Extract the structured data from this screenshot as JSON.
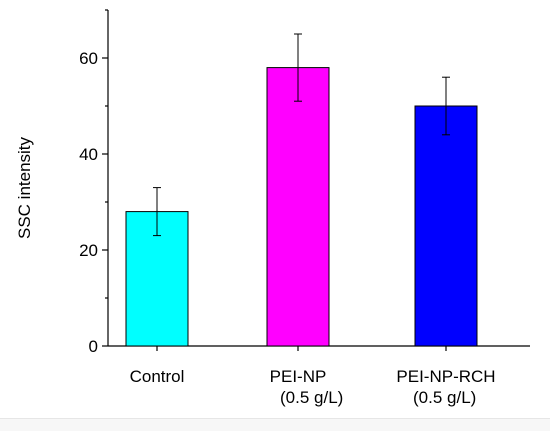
{
  "chart_data": {
    "type": "bar",
    "title": "",
    "xlabel": "",
    "ylabel": "SSC intensity",
    "ylim": [
      0,
      70
    ],
    "yticks": [
      0,
      20,
      40,
      60
    ],
    "grid": false,
    "legend": "none",
    "categories": [
      {
        "lines": [
          "Control"
        ]
      },
      {
        "lines": [
          "PEI-NP",
          "(0.5 g/L)"
        ]
      },
      {
        "lines": [
          "PEI-NP-RCH",
          "(0.5 g/L)"
        ]
      }
    ],
    "values": [
      28,
      58,
      50
    ],
    "errors": [
      5,
      7,
      6
    ],
    "colors": [
      "#00ffff",
      "#ff00ff",
      "#0000ff"
    ]
  }
}
